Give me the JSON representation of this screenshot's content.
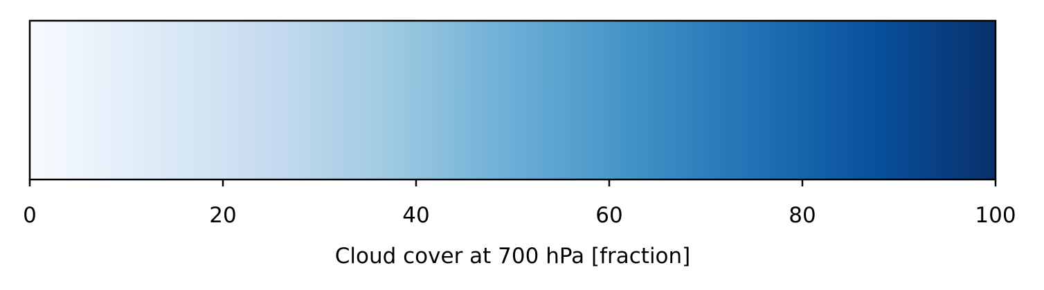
{
  "chart_data": {
    "type": "heatmap",
    "subtype": "horizontal-colorbar",
    "colormap": "Blues",
    "xlabel": "Cloud cover at 700 hPa [fraction]",
    "xlim": [
      0,
      100
    ],
    "ticks": [
      0,
      20,
      40,
      60,
      80,
      100
    ],
    "tick_labels": [
      "0",
      "20",
      "40",
      "60",
      "80",
      "100"
    ],
    "color_stops": [
      {
        "value": 0,
        "color": "#f7fbff"
      },
      {
        "value": 12.5,
        "color": "#deebf7"
      },
      {
        "value": 25,
        "color": "#c6dbef"
      },
      {
        "value": 37.5,
        "color": "#9ecae1"
      },
      {
        "value": 50,
        "color": "#6baed6"
      },
      {
        "value": 62.5,
        "color": "#4292c6"
      },
      {
        "value": 75,
        "color": "#2171b5"
      },
      {
        "value": 87.5,
        "color": "#08519c"
      },
      {
        "value": 100,
        "color": "#08306b"
      }
    ],
    "grid": false
  }
}
